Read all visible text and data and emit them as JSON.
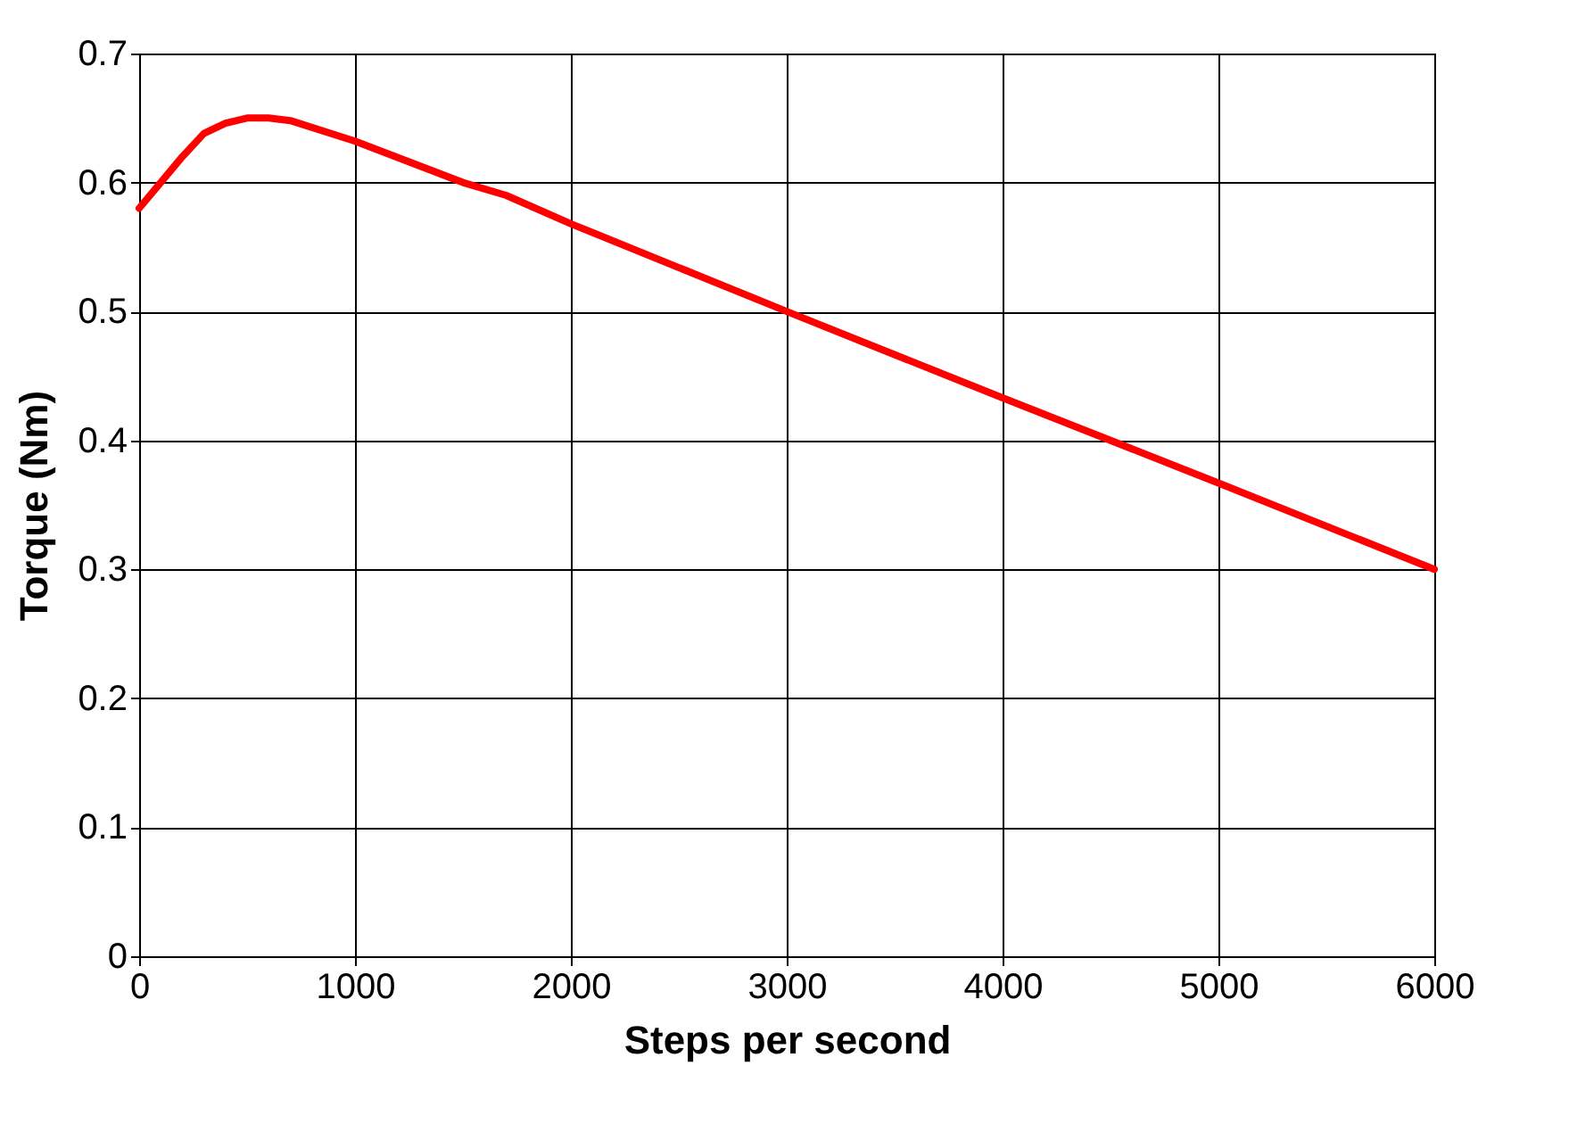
{
  "chart_data": {
    "type": "line",
    "xlabel": "Steps per second",
    "ylabel": "Torque (Nm)",
    "x": [
      0,
      100,
      200,
      300,
      400,
      500,
      600,
      700,
      1000,
      1500,
      1700,
      2000,
      3000,
      4000,
      5000,
      6000
    ],
    "series": [
      {
        "color": "#ff0000",
        "values": [
          0.58,
          0.6,
          0.62,
          0.638,
          0.646,
          0.65,
          0.65,
          0.648,
          0.632,
          0.6,
          0.59,
          0.568,
          0.5,
          0.433,
          0.367,
          0.3
        ]
      }
    ],
    "xlim": [
      0,
      6000
    ],
    "xticks": [
      0,
      1000,
      2000,
      3000,
      4000,
      5000,
      6000
    ],
    "ylim": [
      0,
      0.7
    ],
    "yticks": [
      0,
      0.1,
      0.2,
      0.3,
      0.4,
      0.5,
      0.6,
      0.7
    ],
    "grid": true,
    "marker": "none",
    "line_style": "solid"
  }
}
